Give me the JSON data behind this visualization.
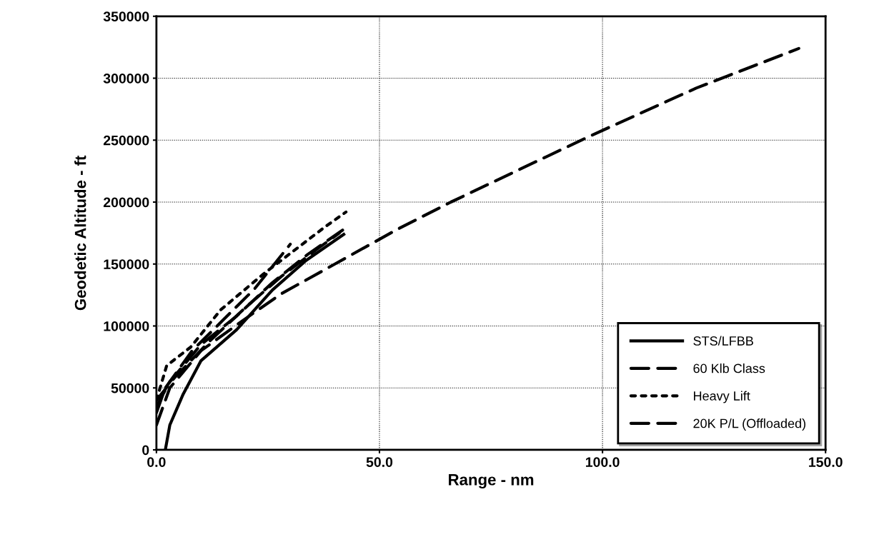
{
  "chart_data": {
    "type": "line",
    "xlabel": "Range - nm",
    "ylabel": "Geodetic Altitude - ft",
    "xlim": [
      0,
      150
    ],
    "ylim": [
      0,
      350000
    ],
    "xticks": [
      {
        "value": 0,
        "label": "0.0"
      },
      {
        "value": 50,
        "label": "50.0"
      },
      {
        "value": 100,
        "label": "100.0"
      },
      {
        "value": 150,
        "label": "150.0"
      }
    ],
    "yticks": [
      0,
      50000,
      100000,
      150000,
      200000,
      250000,
      300000,
      350000
    ],
    "grid": true,
    "legend": "bottom right",
    "marker": "none",
    "series": [
      {
        "name": "STS/LFBB",
        "color": "#000000",
        "line_style": "solid",
        "x": [
          2,
          3,
          6,
          10,
          18,
          26,
          33.6,
          42
        ],
        "values": [
          0,
          20000,
          45000,
          72000,
          97000,
          129000,
          153000,
          174000
        ]
      },
      {
        "color": "#000000",
        "line_style": "dashed",
        "x": [
          0,
          3,
          10,
          20,
          28,
          40,
          54,
          66,
          97,
          121,
          144
        ],
        "values": [
          20000,
          50000,
          80000,
          106000,
          126000,
          150000,
          178000,
          200000,
          253000,
          292000,
          324000
        ]
      },
      {
        "color": "#000000",
        "line_style": "dashed",
        "x": [
          0,
          3,
          10,
          18,
          26,
          34,
          42
        ],
        "values": [
          35000,
          55000,
          85000,
          108000,
          135000,
          158000,
          178000
        ]
      },
      {
        "name": "60 Klb Class",
        "color": "#000000",
        "line_style": "dashed",
        "x": [
          0,
          2,
          8,
          15,
          22,
          30
        ],
        "values": [
          30000,
          50000,
          80000,
          105000,
          130000,
          166000
        ]
      },
      {
        "name": "Heavy Lift",
        "color": "#000000",
        "line_style": "dotted",
        "x": [
          0,
          2.3,
          7.7,
          14.4,
          24,
          37.8,
          42.5
        ],
        "values": [
          40000,
          68000,
          83000,
          113000,
          142000,
          180000,
          192000
        ]
      },
      {
        "name": "20K P/L (Offloaded)",
        "color": "#000000",
        "line_style": "dashed",
        "x": [
          0,
          4,
          12,
          20,
          28,
          36,
          41
        ],
        "values": [
          40000,
          58000,
          88000,
          115000,
          140000,
          162000,
          175000
        ]
      }
    ]
  }
}
